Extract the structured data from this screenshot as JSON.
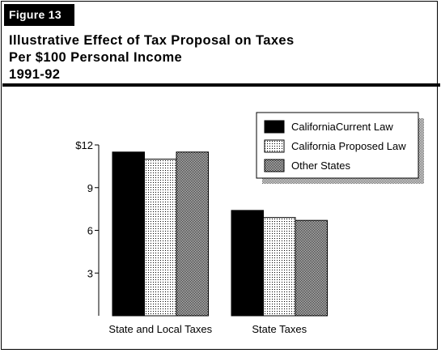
{
  "figure_label": "Figure 13",
  "title_lines": [
    "Illustrative Effect of Tax Proposal on Taxes",
    "Per $100 Personal Income",
    "1991-92"
  ],
  "chart_data": {
    "type": "bar",
    "categories": [
      "State and Local Taxes",
      "State Taxes"
    ],
    "series": [
      {
        "name": "CaliforniaCurrent Law",
        "values": [
          11.5,
          7.4
        ],
        "fill": "solid-black"
      },
      {
        "name": "California Proposed Law",
        "values": [
          11.0,
          6.9
        ],
        "fill": "light-dots"
      },
      {
        "name": "Other States",
        "values": [
          11.5,
          6.7
        ],
        "fill": "dark-dots"
      }
    ],
    "yticks": [
      {
        "value": 12,
        "label": "$12"
      },
      {
        "value": 9,
        "label": "9"
      },
      {
        "value": 6,
        "label": "6"
      },
      {
        "value": 3,
        "label": "3"
      }
    ],
    "ylim": [
      0,
      12
    ],
    "grid": false,
    "legend_position": "top-right"
  }
}
